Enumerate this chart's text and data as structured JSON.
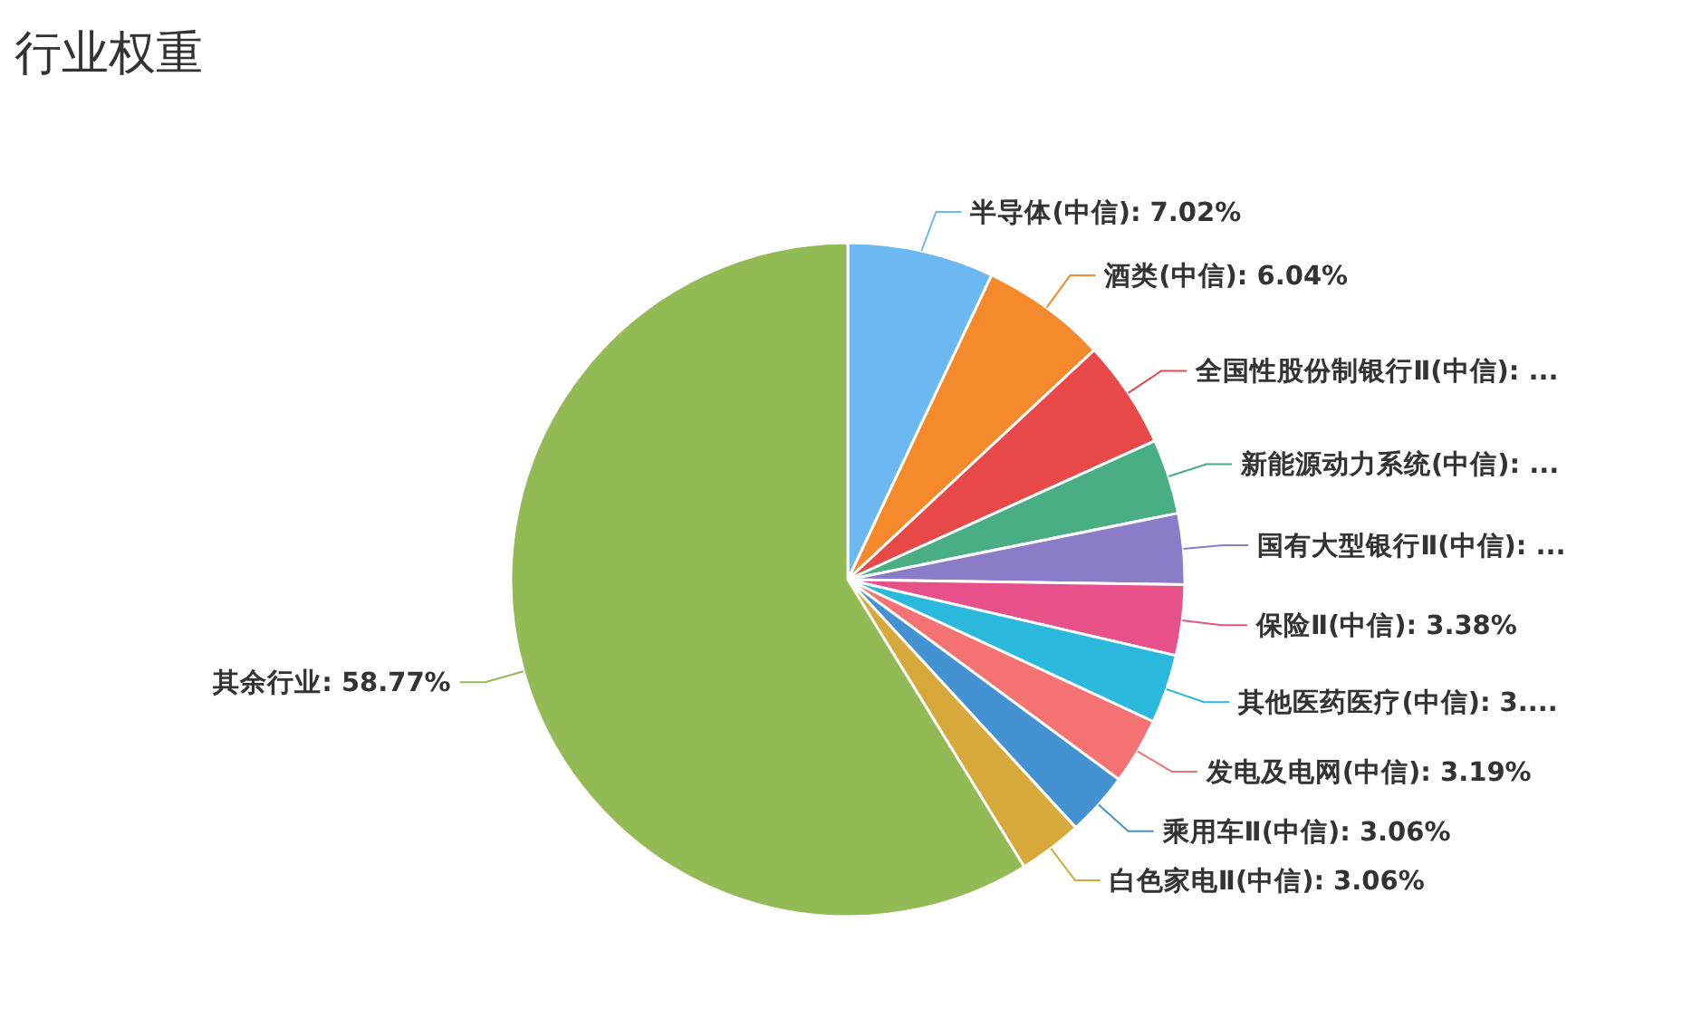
{
  "chart_data": {
    "type": "pie",
    "title": "行业权重",
    "categories": [
      "半导体(中信)",
      "酒类(中信)",
      "全国性股份制银行Ⅱ(中信)",
      "新能源动力系统(中信)",
      "国有大型银行Ⅱ(中信)",
      "保险Ⅱ(中信)",
      "其他医药医疗(中信)",
      "发电及电网(中信)",
      "乘用车Ⅱ(中信)",
      "白色家电Ⅱ(中信)",
      "其余行业"
    ],
    "values": [
      7.02,
      6.04,
      5.18,
      3.6,
      3.4,
      3.38,
      3.3,
      3.19,
      3.06,
      3.06,
      58.77
    ],
    "value_labels": [
      "7.02%",
      "6.04%",
      "...",
      "...",
      "...",
      "3.38%",
      "3....",
      "3.19%",
      "3.06%",
      "3.06%",
      "58.77%"
    ],
    "colors": [
      "#6cb8f0",
      "#f58a2c",
      "#e84848",
      "#4aae84",
      "#8a7cc6",
      "#e8508a",
      "#2ab8dc",
      "#f57272",
      "#4592d2",
      "#d6a93a",
      "#93bb55"
    ]
  }
}
